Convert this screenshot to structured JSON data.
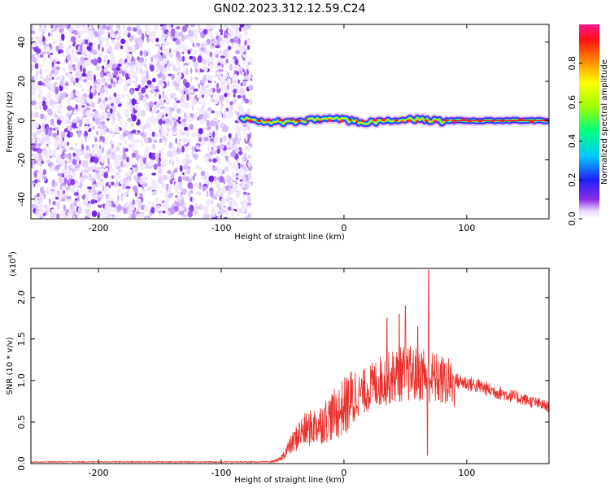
{
  "title": "GN02.2023.312.12.59.C24",
  "chart_data": [
    {
      "type": "heatmap",
      "xlabel": "Height of straight line (km)",
      "ylabel": "Frequency (Hz)",
      "xlim": [
        -255,
        167
      ],
      "ylim": [
        -50,
        49
      ],
      "xticks": [
        -200,
        -100,
        0,
        100
      ],
      "xtick_labels": [
        "-200",
        "-100",
        "0",
        "100"
      ],
      "yticks": [
        -40,
        -20,
        0,
        20,
        40
      ],
      "ytick_labels": [
        "-40",
        "-20",
        "0",
        "20",
        "40"
      ],
      "noise_region_x": [
        -255,
        -78
      ],
      "signal_region_x": [
        -78,
        167
      ],
      "signal_frequency_hz": 0,
      "colorbar": {
        "label": "Normalized spectral amplitude",
        "range": [
          0,
          1
        ],
        "ticks": [
          0.0,
          0.2,
          0.4,
          0.6,
          0.8
        ],
        "tick_labels": [
          "0.0",
          "0.2",
          "0.4",
          "0.6",
          "0.8"
        ]
      }
    },
    {
      "type": "line",
      "xlabel": "Height of straight line (km)",
      "ylabel": "SNR (10 * v/v)",
      "y_multiplier_label": "(x10",
      "y_multiplier_exp": "4",
      "xlim": [
        -255,
        167
      ],
      "ylim": [
        0,
        2.35
      ],
      "xticks": [
        -200,
        -100,
        0,
        100
      ],
      "xtick_labels": [
        "-200",
        "-100",
        "0",
        "100"
      ],
      "yticks": [
        0.0,
        0.5,
        1.0,
        1.5,
        2.0
      ],
      "ytick_labels": [
        "0.0",
        "0.5",
        "1.0",
        "1.5",
        "2.0"
      ],
      "series_color": "#e8302c",
      "envelope": {
        "x": [
          -255,
          -60,
          -52,
          -45,
          -35,
          -20,
          -5,
          10,
          20,
          30,
          40,
          50,
          60,
          65,
          70,
          80,
          90,
          100,
          110,
          120,
          130,
          140,
          150,
          167
        ],
        "y": [
          0.02,
          0.02,
          0.05,
          0.2,
          0.4,
          0.5,
          0.65,
          0.85,
          0.95,
          1.05,
          1.1,
          1.15,
          1.12,
          1.15,
          1.1,
          1.05,
          1.0,
          0.97,
          0.93,
          0.88,
          0.84,
          0.8,
          0.76,
          0.68
        ]
      },
      "peaks": [
        {
          "x": 69,
          "y": 2.33
        },
        {
          "x": 50,
          "y": 1.9
        },
        {
          "x": 35,
          "y": 1.75
        },
        {
          "x": 45,
          "y": 1.8
        },
        {
          "x": 60,
          "y": 1.65
        },
        {
          "x": 68,
          "y": 0.1
        }
      ]
    }
  ],
  "colors": {
    "axis": "#000000",
    "noise": "#7b2ff0",
    "signal_core": "#ff1a1a"
  }
}
